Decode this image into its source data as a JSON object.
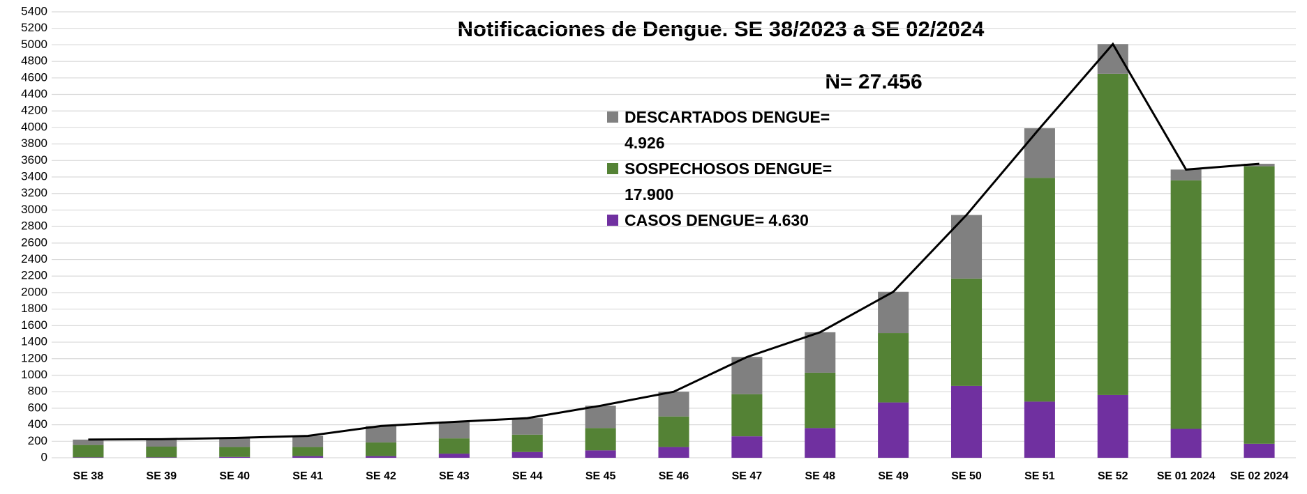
{
  "chart_data": {
    "type": "stacked_bar",
    "title": "Notificaciones de Dengue. SE  38/2023 a SE  02/2024",
    "annotation": "N= 27.456",
    "categories": [
      "SE 38",
      "SE 39",
      "SE 40",
      "SE 41",
      "SE 42",
      "SE 43",
      "SE 44",
      "SE 45",
      "SE 46",
      "SE 47",
      "SE 48",
      "SE 49",
      "SE 50",
      "SE 51",
      "SE 52",
      "SE 01 2024",
      "SE 02 2024"
    ],
    "series": [
      {
        "name": "CASOS DENGUE= 4.630",
        "color": "#7030a0",
        "values": [
          5,
          5,
          10,
          20,
          20,
          50,
          70,
          90,
          130,
          260,
          360,
          670,
          870,
          680,
          760,
          350,
          170
        ]
      },
      {
        "name": "SOSPECHOSOS DENGUE= 17.900",
        "color": "#548235",
        "values": [
          150,
          130,
          120,
          110,
          165,
          185,
          210,
          270,
          370,
          510,
          670,
          840,
          1300,
          2710,
          3890,
          3010,
          3360
        ]
      },
      {
        "name": "DESCARTADOS DENGUE= 4.926",
        "color": "#808080",
        "values": [
          65,
          90,
          110,
          135,
          200,
          200,
          200,
          270,
          300,
          450,
          490,
          500,
          770,
          600,
          360,
          130,
          30
        ]
      }
    ],
    "line": {
      "color": "#000000",
      "values": [
        220,
        225,
        240,
        265,
        385,
        435,
        480,
        630,
        800,
        1220,
        1520,
        2010,
        2940,
        3990,
        5010,
        3490,
        3560
      ]
    },
    "ylim": [
      0,
      5400
    ],
    "yticks": [
      0,
      200,
      400,
      600,
      800,
      1000,
      1200,
      1400,
      1600,
      1800,
      2000,
      2200,
      2400,
      2600,
      2800,
      3000,
      3200,
      3400,
      3600,
      3800,
      4000,
      4200,
      4400,
      4600,
      4800,
      5000,
      5200,
      5400
    ],
    "grid": true
  }
}
